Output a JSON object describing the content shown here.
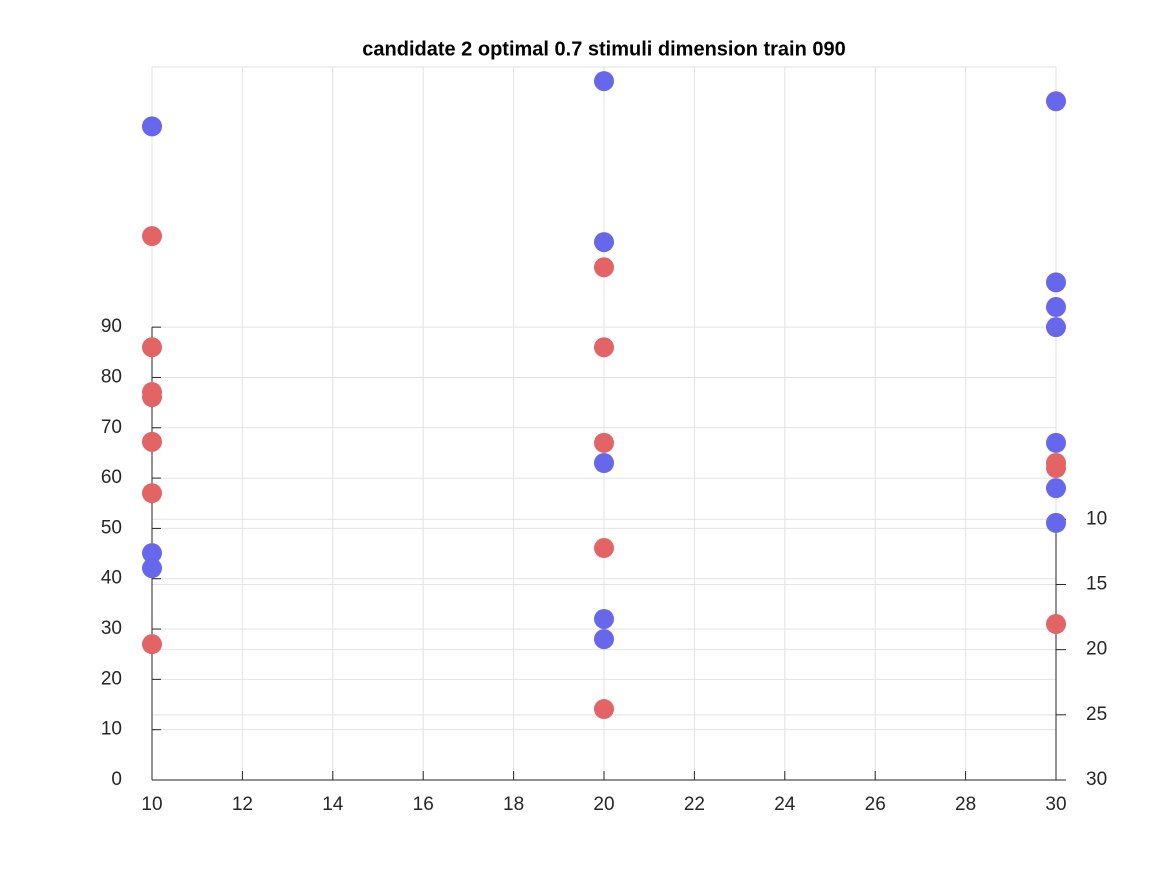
{
  "chart_data": {
    "type": "scatter",
    "title": "candidate 2 optimal 0.7 stimuli dimension train 090",
    "series": [
      {
        "color": "#e36464",
        "x": [
          10,
          10,
          10,
          10,
          10,
          10,
          10,
          20,
          20,
          20,
          20,
          20,
          30,
          30,
          30
        ],
        "values": [
          108.1,
          86.0,
          77.1,
          76.1,
          67.2,
          57.0,
          27.0,
          101.9,
          86.0,
          67.0,
          46.1,
          14.1,
          63.0,
          62.0,
          31.0
        ]
      },
      {
        "color": "#6767ec",
        "x": [
          10,
          10,
          10,
          20,
          20,
          20,
          20,
          20,
          30,
          30,
          30,
          30,
          30,
          30,
          30
        ],
        "values": [
          129.9,
          45.1,
          42.1,
          138.9,
          106.9,
          63.0,
          32.0,
          28.0,
          134.9,
          98.9,
          94.0,
          90.0,
          67.0,
          58.0,
          51.1
        ]
      }
    ],
    "xlim": [
      10,
      30
    ],
    "xticks": [
      10,
      12,
      14,
      16,
      18,
      20,
      22,
      24,
      26,
      28,
      30
    ],
    "ylim": [
      0,
      141.7
    ],
    "yticks": [
      0,
      10,
      20,
      30,
      40,
      50,
      60,
      70,
      80,
      90
    ],
    "y2lim": [
      30,
      -24.7
    ],
    "y2ticks": [
      10,
      15,
      20,
      25,
      30
    ],
    "grid": true
  }
}
